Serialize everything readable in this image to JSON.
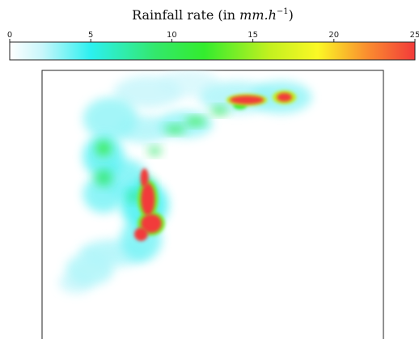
{
  "chart_data": {
    "type": "heatmap",
    "title": "",
    "colorbar": {
      "label": "Rainfall rate (in mm.h⁻¹)",
      "label_text": "Rainfall rate (in ",
      "label_unit": "mm.h",
      "label_exponent": "−1",
      "label_close": ")",
      "min": 0,
      "max": 25,
      "ticks": [
        0,
        5,
        10,
        15,
        20,
        25
      ],
      "colormap": [
        {
          "value": 0,
          "color": "#ffffff"
        },
        {
          "value": 2,
          "color": "#c8f6fb"
        },
        {
          "value": 5,
          "color": "#2cf0f0"
        },
        {
          "value": 9,
          "color": "#33e86b"
        },
        {
          "value": 12,
          "color": "#33ec2e"
        },
        {
          "value": 16,
          "color": "#c2f01f"
        },
        {
          "value": 19,
          "color": "#fbf825"
        },
        {
          "value": 22,
          "color": "#fa8f2f"
        },
        {
          "value": 25,
          "color": "#f23a3a"
        }
      ]
    },
    "axes": {
      "grid": false,
      "xticks": [],
      "yticks": []
    },
    "field": {
      "description_units": "mm.h-1",
      "blobs": [
        {
          "cx": 0.31,
          "cy": 0.08,
          "rx": 0.1,
          "ry": 0.06,
          "value": 2
        },
        {
          "cx": 0.43,
          "cy": 0.05,
          "rx": 0.09,
          "ry": 0.05,
          "value": 1.5
        },
        {
          "cx": 0.57,
          "cy": 0.1,
          "rx": 0.11,
          "ry": 0.06,
          "value": 2.5
        },
        {
          "cx": 0.7,
          "cy": 0.1,
          "rx": 0.09,
          "ry": 0.06,
          "value": 3
        },
        {
          "cx": 0.2,
          "cy": 0.18,
          "rx": 0.08,
          "ry": 0.08,
          "value": 3
        },
        {
          "cx": 0.3,
          "cy": 0.22,
          "rx": 0.08,
          "ry": 0.05,
          "value": 2.5
        },
        {
          "cx": 0.42,
          "cy": 0.2,
          "rx": 0.08,
          "ry": 0.05,
          "value": 3
        },
        {
          "cx": 0.18,
          "cy": 0.32,
          "rx": 0.06,
          "ry": 0.08,
          "value": 4
        },
        {
          "cx": 0.24,
          "cy": 0.4,
          "rx": 0.07,
          "ry": 0.07,
          "value": 3.5
        },
        {
          "cx": 0.18,
          "cy": 0.46,
          "rx": 0.06,
          "ry": 0.07,
          "value": 3.5
        },
        {
          "cx": 0.3,
          "cy": 0.5,
          "rx": 0.07,
          "ry": 0.09,
          "value": 4.5
        },
        {
          "cx": 0.29,
          "cy": 0.63,
          "rx": 0.06,
          "ry": 0.08,
          "value": 3.5
        },
        {
          "cx": 0.21,
          "cy": 0.68,
          "rx": 0.1,
          "ry": 0.05,
          "value": 2.5
        },
        {
          "cx": 0.14,
          "cy": 0.74,
          "rx": 0.07,
          "ry": 0.06,
          "value": 2.5
        },
        {
          "cx": 0.1,
          "cy": 0.79,
          "rx": 0.05,
          "ry": 0.04,
          "value": 2
        },
        {
          "cx": 0.18,
          "cy": 0.4,
          "rx": 0.025,
          "ry": 0.03,
          "value": 9
        },
        {
          "cx": 0.31,
          "cy": 0.43,
          "rx": 0.02,
          "ry": 0.03,
          "value": 8
        },
        {
          "cx": 0.27,
          "cy": 0.47,
          "rx": 0.02,
          "ry": 0.02,
          "value": 8
        },
        {
          "cx": 0.33,
          "cy": 0.3,
          "rx": 0.02,
          "ry": 0.015,
          "value": 9
        },
        {
          "cx": 0.18,
          "cy": 0.29,
          "rx": 0.022,
          "ry": 0.028,
          "value": 11
        },
        {
          "cx": 0.39,
          "cy": 0.22,
          "rx": 0.03,
          "ry": 0.015,
          "value": 10
        },
        {
          "cx": 0.45,
          "cy": 0.19,
          "rx": 0.03,
          "ry": 0.015,
          "value": 11
        },
        {
          "cx": 0.52,
          "cy": 0.15,
          "rx": 0.025,
          "ry": 0.015,
          "value": 10
        },
        {
          "cx": 0.58,
          "cy": 0.13,
          "rx": 0.02,
          "ry": 0.015,
          "value": 12
        },
        {
          "cx": 0.6,
          "cy": 0.11,
          "rx": 0.06,
          "ry": 0.022,
          "value": 16
        },
        {
          "cx": 0.6,
          "cy": 0.11,
          "rx": 0.05,
          "ry": 0.016,
          "value": 25
        },
        {
          "cx": 0.71,
          "cy": 0.1,
          "rx": 0.035,
          "ry": 0.025,
          "value": 16
        },
        {
          "cx": 0.71,
          "cy": 0.1,
          "rx": 0.022,
          "ry": 0.016,
          "value": 25
        },
        {
          "cx": 0.31,
          "cy": 0.48,
          "rx": 0.03,
          "ry": 0.07,
          "value": 14
        },
        {
          "cx": 0.31,
          "cy": 0.48,
          "rx": 0.02,
          "ry": 0.06,
          "value": 25
        },
        {
          "cx": 0.3,
          "cy": 0.4,
          "rx": 0.012,
          "ry": 0.035,
          "value": 25
        },
        {
          "cx": 0.32,
          "cy": 0.57,
          "rx": 0.04,
          "ry": 0.045,
          "value": 14
        },
        {
          "cx": 0.32,
          "cy": 0.57,
          "rx": 0.03,
          "ry": 0.035,
          "value": 25
        },
        {
          "cx": 0.29,
          "cy": 0.61,
          "rx": 0.02,
          "ry": 0.025,
          "value": 25
        }
      ]
    }
  }
}
